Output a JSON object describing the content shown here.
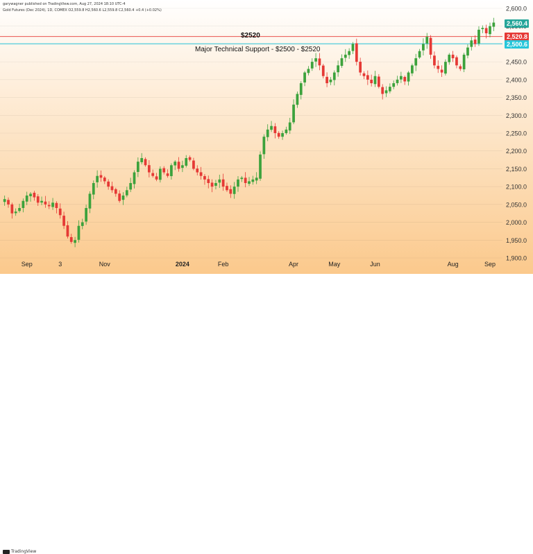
{
  "header": "garywagner published on TradingView.com, Aug 27, 2024 18:10 UTC-4",
  "subheader": "Gold Futures (Dec 2024), 1D, COMEX  O2,559.8  H2,560.6  L2,559.8  C2,560.4  +0.4 (+0.02%)",
  "footer_brand": "TradingView",
  "annotations": {
    "resistance_label": "$2520",
    "support_label": "Major Technical Support - $2500 - $2520"
  },
  "price_tags": [
    {
      "label": "2,560.4",
      "value": 2560.4,
      "color": "#26a69a"
    },
    {
      "label": "2,520.8",
      "value": 2520.8,
      "color": "#e53935"
    },
    {
      "label": "2,500.6",
      "value": 2500.6,
      "color": "#26c6da"
    }
  ],
  "chart_data": {
    "type": "candlestick",
    "y_axis": {
      "ticks": [
        1900,
        1950,
        2000,
        2050,
        2100,
        2150,
        2200,
        2250,
        2300,
        2350,
        2400,
        2450,
        2500,
        2550,
        2600
      ],
      "tick_labels": [
        "1,900.0",
        "1,950.0",
        "2,000.0",
        "2,050.0",
        "2,100.0",
        "2,150.0",
        "2,200.0",
        "2,250.0",
        "2,300.0",
        "2,350.0",
        "2,400.0",
        "2,450.0",
        "2,500.0",
        "2,550.0",
        "2,600.0"
      ],
      "range": [
        1900,
        2600
      ],
      "position": "right"
    },
    "x_axis": {
      "labels": [
        {
          "text": "Sep",
          "index": 6
        },
        {
          "text": "3",
          "index": 15
        },
        {
          "text": "Nov",
          "index": 27
        },
        {
          "text": "2024",
          "index": 48
        },
        {
          "text": "Feb",
          "index": 59
        },
        {
          "text": "Apr",
          "index": 78
        },
        {
          "text": "May",
          "index": 89
        },
        {
          "text": "Jun",
          "index": 100
        },
        {
          "text": "Aug",
          "index": 121
        },
        {
          "text": "Sep",
          "index": 131
        }
      ],
      "bars_total": 133
    },
    "horizontal_levels": [
      {
        "value": 2520.8,
        "color": "#e53935"
      },
      {
        "value": 2500.6,
        "color": "#26c6da"
      }
    ],
    "closes": [
      2065,
      2050,
      2025,
      2030,
      2040,
      2060,
      2075,
      2080,
      2070,
      2055,
      2060,
      2050,
      2045,
      2055,
      2040,
      2020,
      1990,
      1960,
      1945,
      1950,
      1990,
      2000,
      2040,
      2080,
      2110,
      2130,
      2125,
      2115,
      2100,
      2090,
      2080,
      2060,
      2075,
      2090,
      2110,
      2140,
      2170,
      2180,
      2160,
      2140,
      2130,
      2120,
      2150,
      2140,
      2130,
      2160,
      2170,
      2150,
      2160,
      2180,
      2175,
      2150,
      2140,
      2130,
      2120,
      2110,
      2100,
      2110,
      2120,
      2100,
      2090,
      2080,
      2100,
      2120,
      2125,
      2110,
      2115,
      2120,
      2125,
      2190,
      2240,
      2260,
      2270,
      2250,
      2240,
      2250,
      2260,
      2280,
      2330,
      2360,
      2390,
      2420,
      2430,
      2450,
      2460,
      2440,
      2410,
      2390,
      2400,
      2420,
      2440,
      2460,
      2470,
      2480,
      2500,
      2450,
      2420,
      2410,
      2400,
      2390,
      2410,
      2380,
      2360,
      2370,
      2380,
      2390,
      2400,
      2410,
      2395,
      2420,
      2440,
      2460,
      2480,
      2500,
      2520,
      2470,
      2440,
      2430,
      2420,
      2450,
      2470,
      2460,
      2440,
      2430,
      2470,
      2490,
      2510,
      2500,
      2540,
      2545,
      2530,
      2550,
      2560
    ]
  }
}
